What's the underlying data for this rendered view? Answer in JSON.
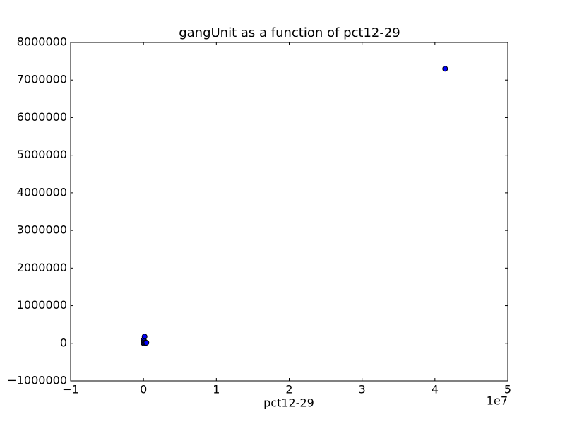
{
  "chart_data": {
    "type": "scatter",
    "title": "gangUnit as a function of pct12-29",
    "x_label": "pct12-29",
    "x_offset_label": "1e7",
    "x": [
      0.0,
      0.005,
      0.01,
      0.01,
      0.015,
      0.02,
      0.03,
      0.04,
      4.14
    ],
    "values": [
      5000,
      100000,
      0,
      50000,
      180000,
      20000,
      10000,
      15000,
      7300000
    ],
    "color": "#0000ff",
    "xlim": [
      -1,
      5
    ],
    "xticks": [
      {
        "value": -1,
        "label": "−1"
      },
      0,
      1,
      2,
      3,
      4,
      5
    ],
    "ylim": [
      -1000000,
      8000000
    ],
    "yticks": [
      {
        "value": -1000000,
        "label": "−1000000"
      },
      0,
      1000000,
      2000000,
      3000000,
      4000000,
      5000000,
      6000000,
      7000000,
      8000000
    ],
    "grid": false
  }
}
